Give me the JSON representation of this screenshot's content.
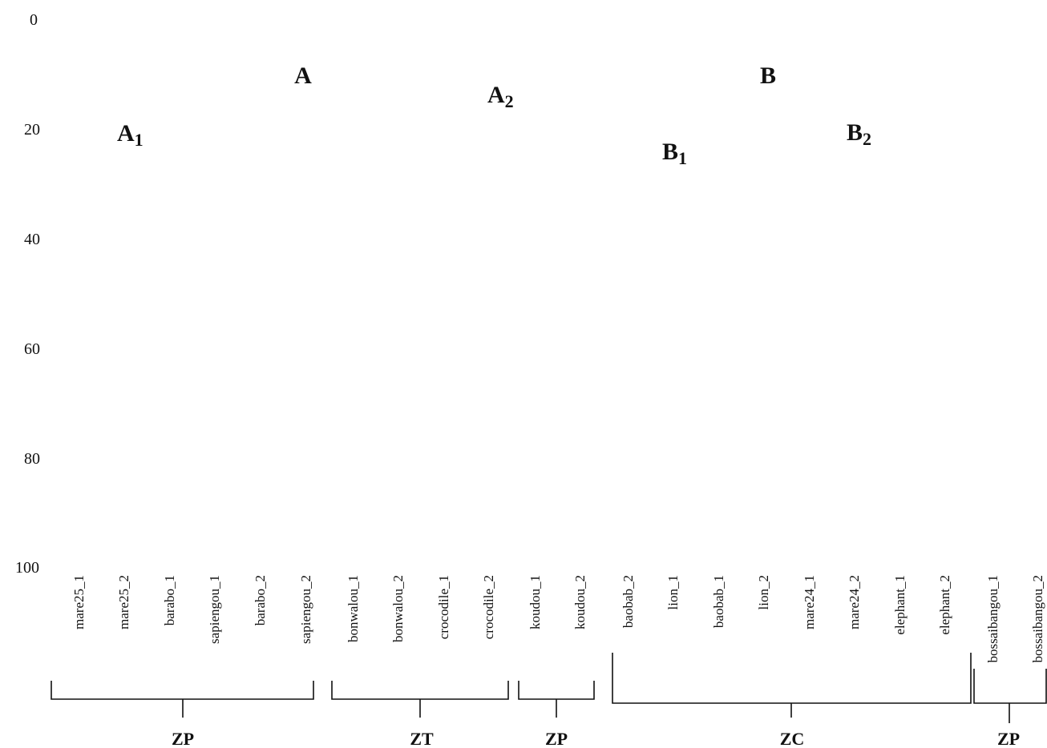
{
  "y_axis": {
    "ticks": [
      "0",
      "20",
      "40",
      "60",
      "80",
      "100"
    ]
  },
  "clusters": [
    {
      "main": "A",
      "sub": ""
    },
    {
      "main": "A",
      "sub": "1"
    },
    {
      "main": "A",
      "sub": "2"
    },
    {
      "main": "B",
      "sub": ""
    },
    {
      "main": "B",
      "sub": "1"
    },
    {
      "main": "B",
      "sub": "2"
    }
  ],
  "leaves": [
    "mare25_1",
    "mare25_2",
    "barabo_1",
    "sapiengou_1",
    "barabo_2",
    "sapiengou_2",
    "bonwalou_1",
    "bonwalou_2",
    "crocodile_1",
    "crocodile_2",
    "koudou_1",
    "koudou_2",
    "baobab_2",
    "lion_1",
    "baobab_1",
    "lion_2",
    "mare24_1",
    "mare24_2",
    "elephant_1",
    "elephant_2",
    "bossaibangou_1",
    "bossaibangou_2"
  ],
  "zones": [
    "ZP",
    "ZT",
    "ZP",
    "ZC",
    "ZP"
  ],
  "text_color": "#111111"
}
